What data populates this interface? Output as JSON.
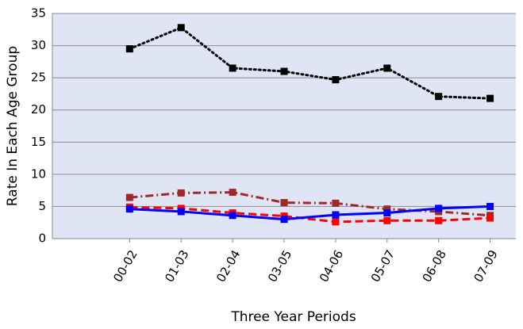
{
  "chart_data": {
    "type": "line",
    "x_label": "Three Year Periods",
    "y_label": "Rate In Each Age Group",
    "categories": [
      null,
      "00-02",
      "01-03",
      "02-04",
      "03-05",
      "04-06",
      "05-07",
      "06-08",
      "07-09"
    ],
    "series": [
      {
        "color": "#000000",
        "dash": "dotted",
        "values": [
          null,
          29.5,
          32.8,
          26.5,
          26.0,
          24.7,
          26.5,
          22.1,
          21.8
        ]
      },
      {
        "color": "#a0282a",
        "dash": "dashdot",
        "values": [
          null,
          6.4,
          7.1,
          7.2,
          5.6,
          5.5,
          4.6,
          4.2,
          3.6
        ]
      },
      {
        "color": "#ff0000",
        "dash": "dashed",
        "values": [
          null,
          4.9,
          4.7,
          4.0,
          3.5,
          2.6,
          2.8,
          2.8,
          3.2
        ]
      },
      {
        "color": "#0000ff",
        "dash": "solid",
        "values": [
          null,
          4.6,
          4.2,
          3.6,
          3.0,
          3.7,
          4.0,
          4.7,
          5.0
        ]
      }
    ],
    "ylim": [
      0,
      35
    ],
    "yticks": [
      0,
      5,
      10,
      15,
      20,
      25,
      30,
      35
    ],
    "grid": true
  }
}
